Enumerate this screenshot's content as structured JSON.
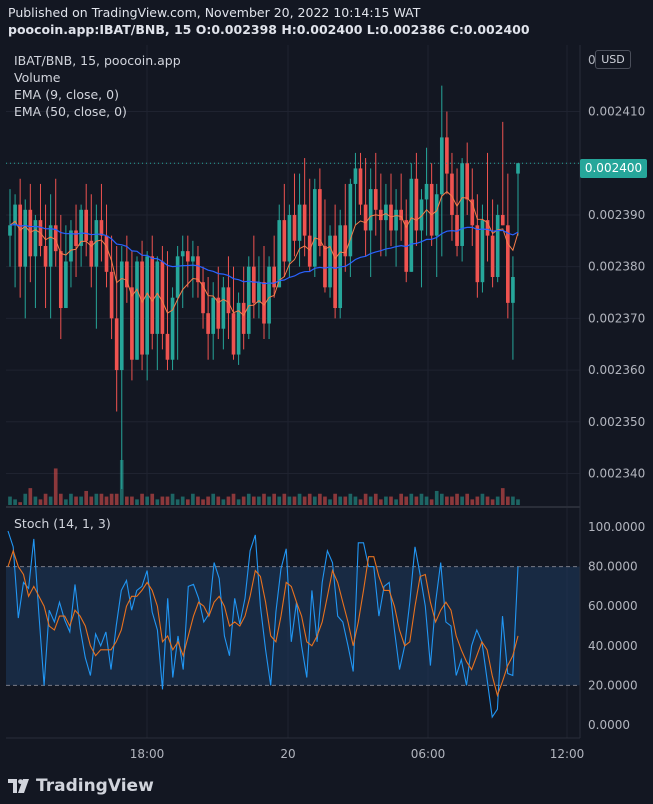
{
  "header": {
    "published": "Published on TradingView.com, November 20, 2022 10:14:15 WAT",
    "symbol": "poocoin.app:IBAT/BNB, 15",
    "ohlc": "O:0.002398 H:0.002400 L:0.002386 C:0.002400"
  },
  "legend": {
    "symbol": "IBAT/BNB, 15, poocoin.app",
    "volume": "Volume",
    "ema9": "EMA (9, close, 0)",
    "ema50": "EMA (50, close, 0)",
    "stoch": "Stoch (14, 1, 3)"
  },
  "currency_button": "USD",
  "last_price_label": "0.002400",
  "footer": {
    "logo_text": "TradingView"
  },
  "colors": {
    "background": "#131722",
    "up": "#26a69a",
    "down": "#ef5350",
    "ema9": "#f57c4a",
    "ema50": "#2962ff",
    "stoch_k": "#2196f3",
    "stoch_d": "#e8711e",
    "stoch_band": "#1e3a5f"
  },
  "chart_data": [
    {
      "type": "candlestick",
      "title": "IBAT/BNB, 15, poocoin.app",
      "y_ticks": [
        "0.002410",
        "0.002400",
        "0.002390",
        "0.002380",
        "0.002370",
        "0.002360",
        "0.002350",
        "0.002340"
      ],
      "y_top_label": "0",
      "ylim": [
        0.002337,
        0.002419
      ],
      "x_ticks": [
        "18:00",
        "20",
        "06:00",
        "12:00"
      ],
      "last_price": 0.0024,
      "candles": [
        [
          0.002386,
          0.002395,
          0.00238,
          0.002388,
          3
        ],
        [
          0.002388,
          0.002394,
          0.002376,
          0.002392,
          2
        ],
        [
          0.002392,
          0.002397,
          0.002374,
          0.00238,
          1
        ],
        [
          0.00238,
          0.002393,
          0.00237,
          0.002391,
          4
        ],
        [
          0.002391,
          0.002396,
          0.002377,
          0.002382,
          6
        ],
        [
          0.002382,
          0.00239,
          0.002372,
          0.002389,
          3
        ],
        [
          0.002389,
          0.002396,
          0.002382,
          0.002384,
          2
        ],
        [
          0.002384,
          0.002392,
          0.002372,
          0.00238,
          4
        ],
        [
          0.00238,
          0.002394,
          0.00237,
          0.002388,
          3
        ],
        [
          0.002388,
          0.002397,
          0.00238,
          0.002383,
          13
        ],
        [
          0.002383,
          0.00239,
          0.002366,
          0.002372,
          4
        ],
        [
          0.002372,
          0.002388,
          0.002372,
          0.002381,
          2
        ],
        [
          0.002381,
          0.002389,
          0.002376,
          0.002387,
          4
        ],
        [
          0.002387,
          0.002392,
          0.002378,
          0.002384,
          3
        ],
        [
          0.002384,
          0.002392,
          0.00238,
          0.002391,
          3
        ],
        [
          0.002391,
          0.002396,
          0.002382,
          0.002385,
          5
        ],
        [
          0.002385,
          0.002394,
          0.002376,
          0.00238,
          3
        ],
        [
          0.00238,
          0.002392,
          0.002368,
          0.002389,
          4
        ],
        [
          0.002389,
          0.002396,
          0.002381,
          0.002386,
          4
        ],
        [
          0.002386,
          0.002392,
          0.002376,
          0.002379,
          3
        ],
        [
          0.002379,
          0.002386,
          0.002366,
          0.00237,
          4
        ],
        [
          0.00237,
          0.002384,
          0.002352,
          0.00236,
          4
        ],
        [
          0.00236,
          0.002384,
          0.002337,
          0.002381,
          16
        ],
        [
          0.002381,
          0.002386,
          0.002373,
          0.002376,
          3
        ],
        [
          0.002376,
          0.002383,
          0.002358,
          0.002362,
          3
        ],
        [
          0.002362,
          0.002382,
          0.002362,
          0.002381,
          2
        ],
        [
          0.002381,
          0.002385,
          0.00236,
          0.002363,
          4
        ],
        [
          0.002363,
          0.002383,
          0.002358,
          0.002382,
          3
        ],
        [
          0.002382,
          0.002386,
          0.002364,
          0.002367,
          4
        ],
        [
          0.002367,
          0.002382,
          0.00236,
          0.002381,
          2
        ],
        [
          0.002381,
          0.002384,
          0.002364,
          0.002367,
          3
        ],
        [
          0.002367,
          0.002383,
          0.00236,
          0.002362,
          3
        ],
        [
          0.002362,
          0.002376,
          0.00236,
          0.002374,
          4
        ],
        [
          0.002374,
          0.002384,
          0.002362,
          0.002382,
          2
        ],
        [
          0.002382,
          0.002386,
          0.002372,
          0.002383,
          3
        ],
        [
          0.002383,
          0.002386,
          0.002376,
          0.002381,
          2
        ],
        [
          0.002381,
          0.002385,
          0.002374,
          0.002382,
          4
        ],
        [
          0.002382,
          0.002384,
          0.002374,
          0.002377,
          3
        ],
        [
          0.002377,
          0.00238,
          0.002368,
          0.002371,
          2
        ],
        [
          0.002371,
          0.002378,
          0.002362,
          0.002367,
          3
        ],
        [
          0.002367,
          0.002377,
          0.002362,
          0.002374,
          4
        ],
        [
          0.002374,
          0.00238,
          0.002366,
          0.002368,
          3
        ],
        [
          0.002368,
          0.002378,
          0.002364,
          0.002376,
          2
        ],
        [
          0.002376,
          0.002382,
          0.002366,
          0.002371,
          3
        ],
        [
          0.002371,
          0.00238,
          0.002362,
          0.002363,
          4
        ],
        [
          0.002363,
          0.002375,
          0.002361,
          0.002373,
          2
        ],
        [
          0.002373,
          0.00238,
          0.002364,
          0.002367,
          3
        ],
        [
          0.002367,
          0.002382,
          0.002366,
          0.00238,
          4
        ],
        [
          0.00238,
          0.002386,
          0.00237,
          0.002373,
          3
        ],
        [
          0.002373,
          0.002382,
          0.00237,
          0.002377,
          3
        ],
        [
          0.002377,
          0.002384,
          0.002366,
          0.002369,
          4
        ],
        [
          0.002369,
          0.002382,
          0.002366,
          0.00238,
          3
        ],
        [
          0.00238,
          0.002386,
          0.002374,
          0.002376,
          4
        ],
        [
          0.002376,
          0.002392,
          0.002376,
          0.002389,
          3
        ],
        [
          0.002389,
          0.002396,
          0.002378,
          0.002381,
          4
        ],
        [
          0.002381,
          0.002392,
          0.002378,
          0.00239,
          3
        ],
        [
          0.00239,
          0.002398,
          0.002382,
          0.002385,
          3
        ],
        [
          0.002385,
          0.002398,
          0.00238,
          0.002392,
          4
        ],
        [
          0.002392,
          0.002401,
          0.002382,
          0.002386,
          3
        ],
        [
          0.002386,
          0.002397,
          0.002379,
          0.00238,
          4
        ],
        [
          0.00238,
          0.002397,
          0.002378,
          0.002395,
          3
        ],
        [
          0.002395,
          0.002399,
          0.002382,
          0.002384,
          4
        ],
        [
          0.002384,
          0.002393,
          0.002375,
          0.002376,
          3
        ],
        [
          0.002376,
          0.002388,
          0.002374,
          0.002386,
          2
        ],
        [
          0.002386,
          0.002392,
          0.00237,
          0.002372,
          4
        ],
        [
          0.002372,
          0.002391,
          0.00237,
          0.002388,
          3
        ],
        [
          0.002388,
          0.002396,
          0.002379,
          0.002382,
          3
        ],
        [
          0.002382,
          0.002397,
          0.002378,
          0.002396,
          4
        ],
        [
          0.002396,
          0.002402,
          0.002388,
          0.002399,
          3
        ],
        [
          0.002399,
          0.002402,
          0.00239,
          0.002392,
          2
        ],
        [
          0.002392,
          0.002401,
          0.002382,
          0.002387,
          4
        ],
        [
          0.002387,
          0.002399,
          0.002378,
          0.002395,
          3
        ],
        [
          0.002395,
          0.002402,
          0.002386,
          0.002391,
          4
        ],
        [
          0.002391,
          0.002398,
          0.002382,
          0.002389,
          2
        ],
        [
          0.002389,
          0.002396,
          0.002382,
          0.002392,
          3
        ],
        [
          0.002392,
          0.002398,
          0.002384,
          0.002387,
          3
        ],
        [
          0.002387,
          0.002395,
          0.00238,
          0.002391,
          2
        ],
        [
          0.002391,
          0.002398,
          0.002385,
          0.002389,
          4
        ],
        [
          0.002389,
          0.002393,
          0.002377,
          0.002379,
          3
        ],
        [
          0.002379,
          0.0024,
          0.002379,
          0.002397,
          4
        ],
        [
          0.002397,
          0.002402,
          0.002384,
          0.002387,
          3
        ],
        [
          0.002387,
          0.002395,
          0.002376,
          0.002393,
          4
        ],
        [
          0.002393,
          0.002403,
          0.002386,
          0.002396,
          3
        ],
        [
          0.002396,
          0.0024,
          0.002384,
          0.002386,
          2
        ],
        [
          0.002386,
          0.002396,
          0.002378,
          0.002394,
          5
        ],
        [
          0.002394,
          0.002415,
          0.002382,
          0.002405,
          4
        ],
        [
          0.002405,
          0.00241,
          0.002394,
          0.002398,
          3
        ],
        [
          0.002398,
          0.002402,
          0.002385,
          0.00239,
          3
        ],
        [
          0.00239,
          0.002399,
          0.002382,
          0.002384,
          4
        ],
        [
          0.002384,
          0.002401,
          0.002381,
          0.0024,
          3
        ],
        [
          0.0024,
          0.002404,
          0.00239,
          0.002393,
          4
        ],
        [
          0.002393,
          0.002399,
          0.002384,
          0.002388,
          2
        ],
        [
          0.002388,
          0.002394,
          0.002374,
          0.002377,
          3
        ],
        [
          0.002377,
          0.002392,
          0.002375,
          0.002389,
          4
        ],
        [
          0.002389,
          0.002402,
          0.002381,
          0.002386,
          3
        ],
        [
          0.002386,
          0.002393,
          0.002376,
          0.002378,
          2
        ],
        [
          0.002378,
          0.002392,
          0.002377,
          0.00239,
          3
        ],
        [
          0.00239,
          0.002408,
          0.002388,
          0.002388,
          6
        ],
        [
          0.002388,
          0.002398,
          0.00237,
          0.002373,
          3
        ],
        [
          0.002373,
          0.002382,
          0.002362,
          0.002378,
          3
        ],
        [
          0.002398,
          0.0024,
          0.002386,
          0.0024,
          2
        ]
      ]
    },
    {
      "type": "line",
      "title": "Stoch (14, 1, 3)",
      "y_ticks": [
        "100.0000",
        "80.0000",
        "60.0000",
        "40.0000",
        "20.0000",
        "0.0000"
      ],
      "ylim": [
        -8,
        108
      ],
      "bands": [
        20,
        80
      ],
      "series": [
        {
          "name": "",
          "values": [
            98,
            90,
            54,
            72,
            69,
            94,
            56,
            20,
            58,
            52,
            62,
            53,
            47,
            71,
            49,
            34,
            25,
            46,
            40,
            47,
            28,
            50,
            68,
            73,
            58,
            68,
            70,
            78,
            57,
            48,
            18,
            64,
            24,
            45,
            28,
            70,
            71,
            64,
            52,
            56,
            82,
            74,
            45,
            35,
            64,
            51,
            64,
            88,
            96,
            60,
            38,
            20,
            57,
            79,
            89,
            42,
            62,
            40,
            24,
            68,
            42,
            72,
            88,
            82,
            55,
            52,
            40,
            27,
            92,
            92,
            80,
            80,
            55,
            70,
            72,
            48,
            28,
            40,
            62,
            90,
            76,
            60,
            30,
            62,
            82,
            52,
            50,
            25,
            33,
            20,
            40,
            48,
            42,
            23,
            4,
            8,
            55,
            26,
            25,
            80
          ]
        },
        {
          "name": "",
          "values": [
            80,
            88,
            80,
            76,
            65,
            70,
            65,
            60,
            50,
            48,
            55,
            55,
            50,
            58,
            55,
            50,
            40,
            35,
            38,
            38,
            38,
            42,
            48,
            60,
            65,
            65,
            68,
            72,
            68,
            60,
            42,
            45,
            38,
            42,
            35,
            45,
            55,
            62,
            60,
            55,
            62,
            65,
            60,
            50,
            52,
            50,
            55,
            65,
            78,
            75,
            62,
            45,
            42,
            55,
            72,
            70,
            62,
            55,
            42,
            40,
            45,
            52,
            65,
            78,
            72,
            62,
            52,
            40,
            52,
            68,
            85,
            85,
            75,
            68,
            68,
            60,
            48,
            40,
            42,
            60,
            75,
            76,
            62,
            52,
            58,
            62,
            58,
            45,
            38,
            32,
            28,
            35,
            42,
            38,
            25,
            15,
            22,
            30,
            35,
            45
          ]
        }
      ]
    }
  ]
}
